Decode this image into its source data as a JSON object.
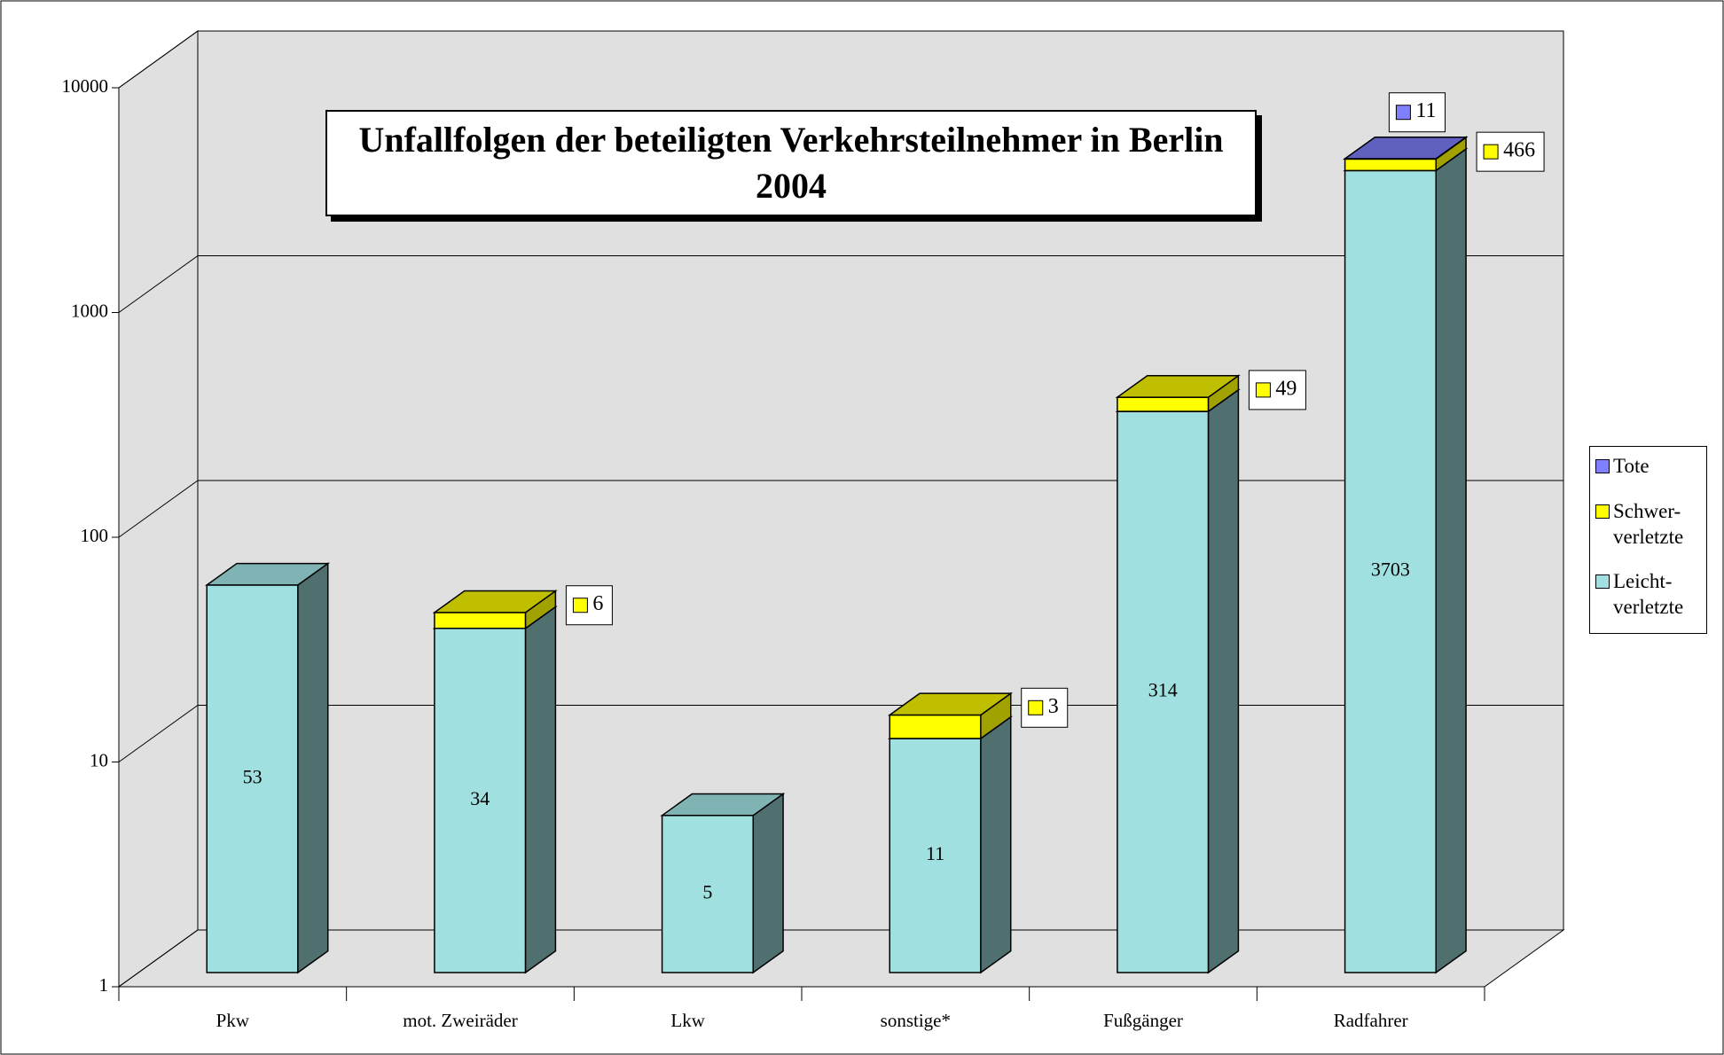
{
  "chart_data": {
    "type": "bar3d_stacked",
    "title": "Unfallfolgen der beteiligten Verkehrsteilnehmer in Berlin 2004",
    "categories": [
      "Pkw",
      "mot. Zweiräder",
      "Lkw",
      "sonstige*",
      "Fußgänger",
      "Radfahrer"
    ],
    "series": [
      {
        "name": "Leicht-verletzte",
        "color": "#a0e0e0",
        "values": [
          53,
          34,
          5,
          11,
          314,
          3703
        ]
      },
      {
        "name": "Schwer-verletzte",
        "color": "#ffff00",
        "values": [
          null,
          6,
          null,
          3,
          49,
          466
        ]
      },
      {
        "name": "Tote",
        "color": "#8080ff",
        "values": [
          null,
          null,
          null,
          null,
          null,
          11
        ]
      }
    ],
    "log_scale": true,
    "ylim": [
      1,
      10000
    ],
    "yticks": [
      1,
      10,
      100,
      1000,
      10000
    ],
    "grid": true,
    "legend": "right"
  }
}
